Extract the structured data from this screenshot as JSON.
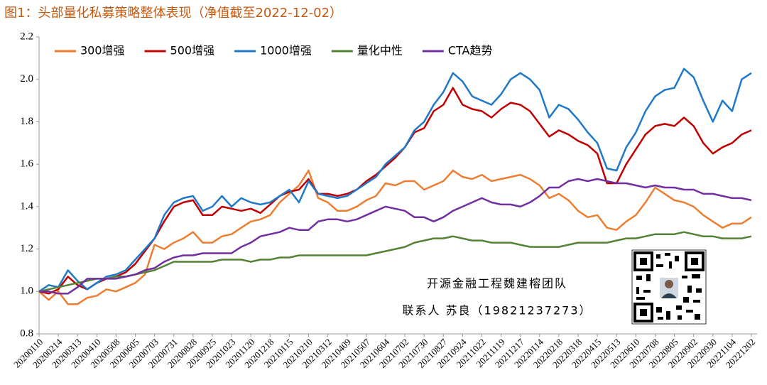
{
  "chart_data": {
    "type": "line",
    "title": "图1：头部量化私募策略整体表现（净值截至2022-12-02）",
    "categories": [
      "20200110",
      null,
      "20200214",
      null,
      "20200313",
      null,
      "20200410",
      null,
      "20200508",
      null,
      "20200605",
      null,
      "20200703",
      null,
      "20200731",
      null,
      "20200828",
      null,
      "20200925",
      null,
      "20201023",
      null,
      "20201120",
      null,
      "20201218",
      null,
      "20210115",
      null,
      "20210210",
      null,
      "20210312",
      null,
      "20210409",
      null,
      "20210507",
      null,
      "20210604",
      null,
      "20210702",
      null,
      "20210730",
      null,
      "20210827",
      null,
      "20210924",
      null,
      "20211022",
      null,
      "20211119",
      null,
      "20211217",
      null,
      "20220114",
      null,
      "20220218",
      null,
      "20220318",
      null,
      "20220415",
      null,
      "20220513",
      null,
      "20220610",
      null,
      "20220708",
      null,
      "20220805",
      null,
      "20220902",
      null,
      "20220930",
      null,
      "20221104",
      null,
      "20221202"
    ],
    "series": [
      {
        "name": "300增强",
        "color": "#ed7d31",
        "values": [
          1.0,
          0.96,
          1.0,
          0.94,
          0.94,
          0.97,
          0.98,
          1.01,
          1.0,
          1.02,
          1.04,
          1.08,
          1.22,
          1.2,
          1.23,
          1.25,
          1.28,
          1.23,
          1.23,
          1.26,
          1.27,
          1.3,
          1.33,
          1.34,
          1.36,
          1.42,
          1.46,
          1.5,
          1.57,
          1.44,
          1.42,
          1.38,
          1.38,
          1.4,
          1.43,
          1.45,
          1.51,
          1.5,
          1.52,
          1.52,
          1.48,
          1.5,
          1.52,
          1.57,
          1.54,
          1.53,
          1.55,
          1.52,
          1.53,
          1.54,
          1.55,
          1.53,
          1.5,
          1.44,
          1.46,
          1.43,
          1.38,
          1.35,
          1.36,
          1.3,
          1.29,
          1.33,
          1.36,
          1.42,
          1.49,
          1.46,
          1.43,
          1.42,
          1.4,
          1.36,
          1.33,
          1.3,
          1.32,
          1.32,
          1.35
        ]
      },
      {
        "name": "500增强",
        "color": "#c00000",
        "values": [
          1.0,
          0.99,
          1.01,
          1.07,
          1.03,
          1.01,
          1.04,
          1.06,
          1.07,
          1.09,
          1.13,
          1.19,
          1.25,
          1.33,
          1.4,
          1.42,
          1.43,
          1.36,
          1.36,
          1.4,
          1.39,
          1.38,
          1.39,
          1.37,
          1.41,
          1.45,
          1.47,
          1.48,
          1.53,
          1.46,
          1.46,
          1.45,
          1.46,
          1.48,
          1.52,
          1.55,
          1.59,
          1.63,
          1.68,
          1.75,
          1.77,
          1.85,
          1.88,
          1.96,
          1.88,
          1.86,
          1.85,
          1.82,
          1.86,
          1.89,
          1.88,
          1.85,
          1.79,
          1.73,
          1.76,
          1.74,
          1.71,
          1.69,
          1.65,
          1.51,
          1.51,
          1.6,
          1.67,
          1.74,
          1.78,
          1.79,
          1.78,
          1.82,
          1.78,
          1.7,
          1.65,
          1.68,
          1.7,
          1.74,
          1.76
        ]
      },
      {
        "name": "1000增强",
        "color": "#1f78c8",
        "values": [
          1.0,
          1.03,
          1.02,
          1.1,
          1.05,
          1.01,
          1.04,
          1.07,
          1.08,
          1.1,
          1.15,
          1.2,
          1.25,
          1.36,
          1.42,
          1.44,
          1.45,
          1.38,
          1.4,
          1.45,
          1.4,
          1.44,
          1.42,
          1.41,
          1.42,
          1.45,
          1.48,
          1.42,
          1.52,
          1.46,
          1.45,
          1.44,
          1.45,
          1.48,
          1.51,
          1.54,
          1.6,
          1.64,
          1.68,
          1.76,
          1.8,
          1.88,
          1.94,
          2.03,
          1.99,
          1.92,
          1.9,
          1.88,
          1.93,
          2.0,
          2.03,
          2.0,
          1.95,
          1.82,
          1.88,
          1.86,
          1.81,
          1.75,
          1.7,
          1.58,
          1.57,
          1.68,
          1.75,
          1.85,
          1.92,
          1.95,
          1.96,
          2.05,
          2.01,
          1.9,
          1.8,
          1.9,
          1.85,
          2.0,
          2.03
        ]
      },
      {
        "name": "量化中性",
        "color": "#548235",
        "values": [
          1.0,
          1.01,
          1.02,
          1.03,
          1.04,
          1.05,
          1.06,
          1.06,
          1.07,
          1.07,
          1.08,
          1.09,
          1.1,
          1.12,
          1.14,
          1.14,
          1.14,
          1.14,
          1.14,
          1.15,
          1.15,
          1.15,
          1.14,
          1.15,
          1.15,
          1.16,
          1.16,
          1.17,
          1.17,
          1.17,
          1.17,
          1.17,
          1.17,
          1.17,
          1.17,
          1.18,
          1.19,
          1.2,
          1.21,
          1.23,
          1.24,
          1.25,
          1.25,
          1.26,
          1.25,
          1.24,
          1.24,
          1.23,
          1.23,
          1.23,
          1.22,
          1.21,
          1.21,
          1.21,
          1.21,
          1.22,
          1.23,
          1.23,
          1.23,
          1.23,
          1.24,
          1.25,
          1.25,
          1.26,
          1.27,
          1.27,
          1.27,
          1.28,
          1.27,
          1.26,
          1.26,
          1.25,
          1.25,
          1.25,
          1.26
        ]
      },
      {
        "name": "CTA趋势",
        "color": "#7030a0",
        "values": [
          1.0,
          1.0,
          0.99,
          0.99,
          1.02,
          1.06,
          1.06,
          1.06,
          1.06,
          1.07,
          1.08,
          1.1,
          1.11,
          1.14,
          1.16,
          1.17,
          1.17,
          1.18,
          1.18,
          1.18,
          1.18,
          1.21,
          1.23,
          1.26,
          1.27,
          1.28,
          1.3,
          1.29,
          1.29,
          1.33,
          1.34,
          1.34,
          1.33,
          1.34,
          1.36,
          1.38,
          1.4,
          1.39,
          1.38,
          1.35,
          1.35,
          1.33,
          1.35,
          1.38,
          1.4,
          1.42,
          1.44,
          1.42,
          1.41,
          1.41,
          1.4,
          1.42,
          1.45,
          1.49,
          1.49,
          1.52,
          1.53,
          1.52,
          1.53,
          1.52,
          1.51,
          1.51,
          1.5,
          1.49,
          1.5,
          1.49,
          1.49,
          1.48,
          1.48,
          1.46,
          1.46,
          1.45,
          1.44,
          1.44,
          1.43
        ]
      }
    ],
    "ylim": [
      0.8,
      2.2
    ],
    "yticks": [
      0.8,
      {
        "value": 1.0,
        "label": "1.0"
      },
      1.2,
      1.4,
      1.6,
      1.8,
      {
        "value": 2.0,
        "label": "2.0"
      },
      2.2
    ],
    "grid": false,
    "legend": "top-left",
    "annotations": [
      "开源金融工程魏建榕团队",
      "联系人 苏良（19821237273）"
    ]
  }
}
